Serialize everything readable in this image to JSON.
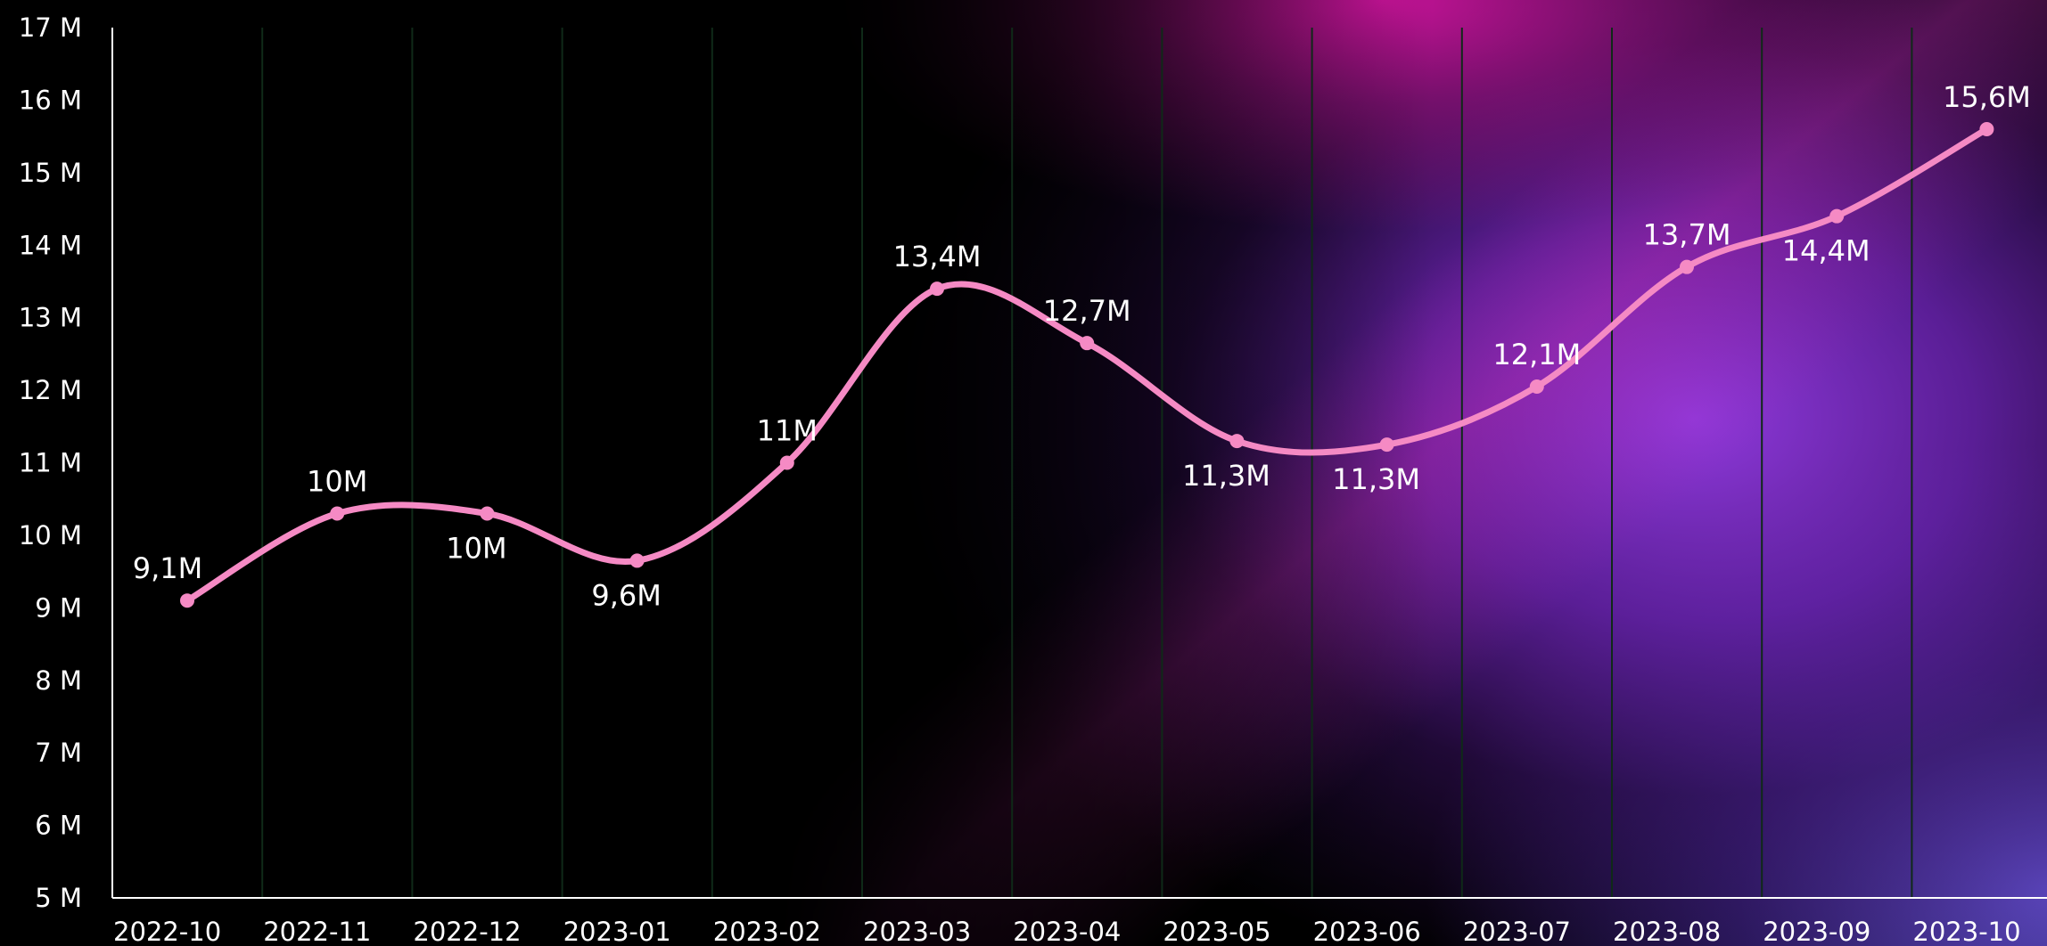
{
  "chart_data": {
    "type": "line",
    "title": "",
    "xlabel": "",
    "ylabel": "",
    "categories": [
      "2022-10",
      "2022-11",
      "2022-12",
      "2023-01",
      "2023-02",
      "2023-03",
      "2023-04",
      "2023-05",
      "2023-06",
      "2023-07",
      "2023-08",
      "2023-09",
      "2023-10"
    ],
    "series": [
      {
        "values": [
          9.1,
          10.3,
          10.3,
          9.65,
          11.0,
          13.4,
          12.65,
          11.3,
          11.25,
          12.05,
          13.7,
          14.4,
          15.6
        ],
        "data_labels": [
          "9,1M",
          "10M",
          "10M",
          "9,6M",
          "11M",
          "13,4M",
          "12,7M",
          "11,3M",
          "11,3M",
          "12,1M",
          "13,7M",
          "14,4M",
          "15,6M"
        ],
        "label_position": [
          "above",
          "above",
          "below",
          "below",
          "above",
          "above",
          "above",
          "below",
          "below",
          "above",
          "above",
          "below",
          "above"
        ],
        "color": "#f58ac4",
        "smooth": true
      }
    ],
    "ylim": [
      5,
      17
    ],
    "yticks": [
      5,
      6,
      7,
      8,
      9,
      10,
      11,
      12,
      13,
      14,
      15,
      16,
      17
    ],
    "ytick_labels": [
      "5 M",
      "6 M",
      "7 M",
      "8 M",
      "9 M",
      "10 M",
      "11 M",
      "12 M",
      "13 M",
      "14 M",
      "15 M",
      "16 M",
      "17 M"
    ],
    "grid": {
      "vertical": true,
      "horizontal": false,
      "color": "#0f2a18"
    },
    "axis_color": "#ffffff",
    "text_color": "#ffffff",
    "legend": "none"
  }
}
